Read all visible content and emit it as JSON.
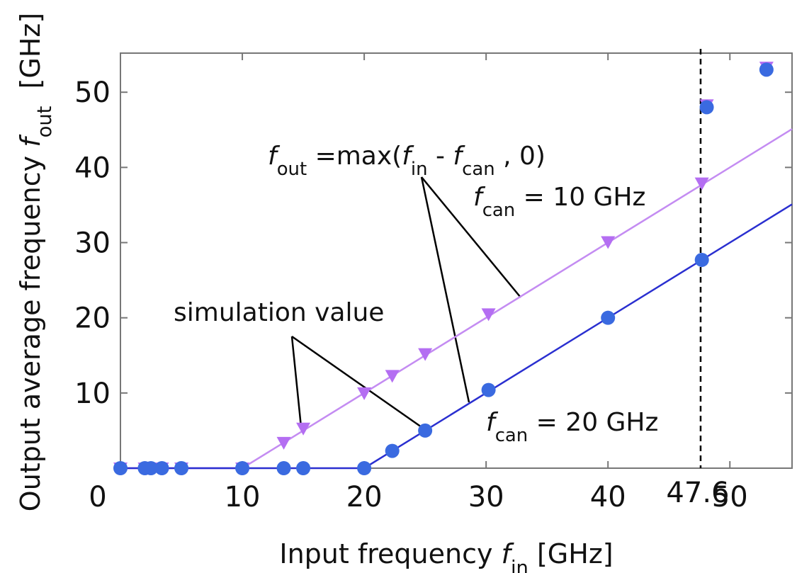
{
  "chart_data": {
    "type": "scatter",
    "xlim": [
      0,
      55.1
    ],
    "ylim": [
      0,
      55.2
    ],
    "xticks": [
      0,
      10,
      20,
      30,
      40,
      50
    ],
    "yticks": [
      10,
      20,
      30,
      40,
      50
    ],
    "xlabel": [
      {
        "text": "Input frequency ",
        "style": "normal"
      },
      {
        "text": "f",
        "style": "italic"
      },
      {
        "text": "in",
        "style": "sub"
      },
      {
        "text": " [GHz]",
        "style": "normal"
      }
    ],
    "ylabel": [
      {
        "text": "Output average frequency ",
        "style": "normal"
      },
      {
        "text": "f",
        "style": "italic"
      },
      {
        "text": "out",
        "style": "sub"
      },
      {
        "text": "  [GHz]",
        "style": "normal"
      }
    ],
    "vline": {
      "x": 47.6,
      "color": "#000000",
      "dashed": true
    },
    "series": [
      {
        "mode": "line",
        "color": "#c48cf2",
        "x": [
          0,
          10,
          55.1
        ],
        "values": [
          0,
          0,
          45.1
        ]
      },
      {
        "mode": "line",
        "color": "#2a2fd0",
        "x": [
          0,
          20,
          55.1
        ],
        "values": [
          0,
          0,
          35.1
        ]
      },
      {
        "mode": "marker",
        "marker": "triangle-down",
        "color": "#b46ef2",
        "x": [
          0,
          2,
          2.5,
          3.4,
          5,
          10,
          13.4,
          15,
          20,
          22.3,
          25,
          30.2,
          40,
          47.7,
          48.1,
          53
        ],
        "values": [
          0,
          0,
          0,
          0,
          0,
          0,
          3.4,
          5.3,
          10,
          12.3,
          15.2,
          20.5,
          30.1,
          37.9,
          48.3,
          53.3
        ]
      },
      {
        "mode": "marker",
        "marker": "circle",
        "color": "#3a6ae0",
        "x": [
          0,
          2,
          2.5,
          3.4,
          5,
          10,
          13.4,
          15,
          20,
          22.3,
          25,
          30.2,
          40,
          47.7,
          48.1,
          53
        ],
        "values": [
          0,
          0,
          0,
          0,
          0,
          0,
          0,
          0,
          0,
          2.3,
          5,
          10.4,
          20,
          27.7,
          48,
          53
        ]
      }
    ],
    "annotations": [
      [
        {
          "text": "f",
          "style": "italic"
        },
        {
          "text": "out",
          "style": "sub"
        },
        {
          "text": " =max(",
          "style": "normal"
        },
        {
          "text": "f",
          "style": "italic"
        },
        {
          "text": "in",
          "style": "sub"
        },
        {
          "text": " - ",
          "style": "normal"
        },
        {
          "text": "f",
          "style": "italic"
        },
        {
          "text": "can",
          "style": "sub"
        },
        {
          "text": " , 0)",
          "style": "normal"
        }
      ],
      [
        {
          "text": "f",
          "style": "italic"
        },
        {
          "text": "can",
          "style": "sub"
        },
        {
          "text": " = 10 GHz",
          "style": "normal"
        }
      ],
      [
        {
          "text": "f",
          "style": "italic"
        },
        {
          "text": "can",
          "style": "sub"
        },
        {
          "text": " = 20 GHz",
          "style": "normal"
        }
      ],
      [
        {
          "text": "simulation value",
          "style": "normal"
        }
      ]
    ]
  }
}
